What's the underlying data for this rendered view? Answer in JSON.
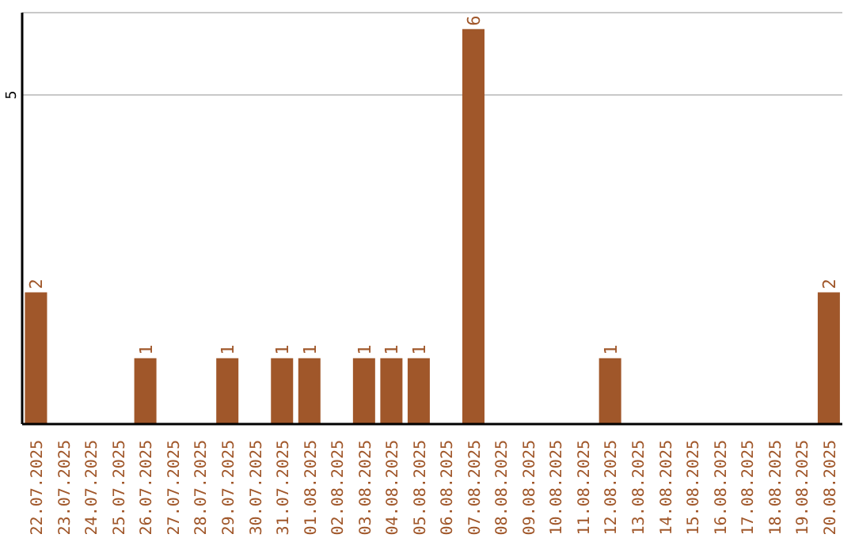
{
  "chart_data": {
    "type": "bar",
    "categories": [
      "22.07.2025",
      "23.07.2025",
      "24.07.2025",
      "25.07.2025",
      "26.07.2025",
      "27.07.2025",
      "28.07.2025",
      "29.07.2025",
      "30.07.2025",
      "31.07.2025",
      "01.08.2025",
      "02.08.2025",
      "03.08.2025",
      "04.08.2025",
      "05.08.2025",
      "06.08.2025",
      "07.08.2025",
      "08.08.2025",
      "09.08.2025",
      "10.08.2025",
      "11.08.2025",
      "12.08.2025",
      "13.08.2025",
      "14.08.2025",
      "15.08.2025",
      "16.08.2025",
      "17.08.2025",
      "18.08.2025",
      "19.08.2025",
      "20.08.2025"
    ],
    "values": [
      2,
      0,
      0,
      0,
      1,
      0,
      0,
      1,
      0,
      1,
      1,
      0,
      1,
      1,
      1,
      0,
      6,
      0,
      0,
      0,
      0,
      1,
      0,
      0,
      0,
      0,
      0,
      0,
      0,
      2
    ],
    "value_labels": [
      "2",
      null,
      null,
      null,
      "1",
      null,
      null,
      "1",
      null,
      "1",
      "1",
      null,
      "1",
      "1",
      "1",
      null,
      "6",
      null,
      null,
      null,
      null,
      "1",
      null,
      null,
      null,
      null,
      null,
      null,
      null,
      "2"
    ],
    "color": "#a0572a",
    "ylim": [
      0,
      6.25
    ],
    "yticks": [
      5
    ],
    "grid": "y"
  }
}
